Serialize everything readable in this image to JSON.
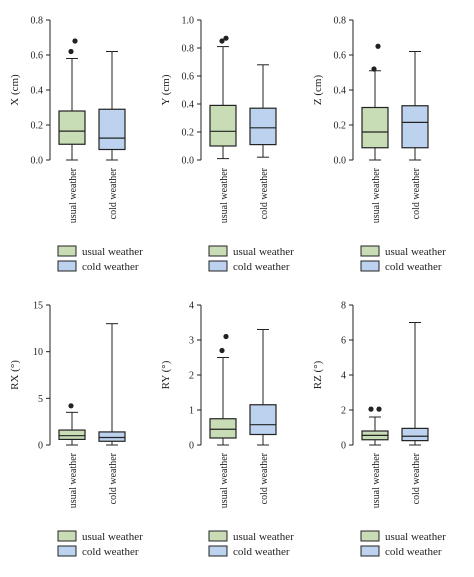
{
  "colors": {
    "usual_fill": "#c8dcb6",
    "cold_fill": "#bcd2ee",
    "stroke": "#222222"
  },
  "legend": {
    "usual_label": "usual weather",
    "cold_label": "cold weather"
  },
  "chart_data": [
    {
      "type": "box",
      "ylabel": "X (cm)",
      "ylim": [
        0,
        0.8
      ],
      "yticks": [
        "0.0",
        "0.2",
        "0.4",
        "0.6",
        "0.8"
      ],
      "categories": [
        "usual weather",
        "cold weather"
      ],
      "boxes": [
        {
          "name": "usual weather",
          "min": 0.0,
          "q1": 0.09,
          "median": 0.165,
          "q3": 0.28,
          "max": 0.58,
          "outliers": [
            0.62,
            0.68
          ]
        },
        {
          "name": "cold weather",
          "min": 0.0,
          "q1": 0.06,
          "median": 0.125,
          "q3": 0.29,
          "max": 0.62,
          "outliers": []
        }
      ]
    },
    {
      "type": "box",
      "ylabel": "Y (cm)",
      "ylim": [
        0,
        1.0
      ],
      "yticks": [
        "0.0",
        "0.2",
        "0.4",
        "0.6",
        "0.8",
        "1.0"
      ],
      "categories": [
        "usual weather",
        "cold weather"
      ],
      "boxes": [
        {
          "name": "usual weather",
          "min": 0.01,
          "q1": 0.1,
          "median": 0.205,
          "q3": 0.39,
          "max": 0.81,
          "outliers": [
            0.85,
            0.87
          ]
        },
        {
          "name": "cold weather",
          "min": 0.02,
          "q1": 0.11,
          "median": 0.23,
          "q3": 0.37,
          "max": 0.68,
          "outliers": []
        }
      ]
    },
    {
      "type": "box",
      "ylabel": "Z (cm)",
      "ylim": [
        0,
        0.8
      ],
      "yticks": [
        "0.0",
        "0.2",
        "0.4",
        "0.6",
        "0.8"
      ],
      "categories": [
        "usual weather",
        "cold weather"
      ],
      "boxes": [
        {
          "name": "usual weather",
          "min": 0.0,
          "q1": 0.07,
          "median": 0.16,
          "q3": 0.3,
          "max": 0.51,
          "outliers": [
            0.52,
            0.65
          ]
        },
        {
          "name": "cold weather",
          "min": 0.0,
          "q1": 0.07,
          "median": 0.215,
          "q3": 0.31,
          "max": 0.62,
          "outliers": []
        }
      ]
    },
    {
      "type": "box",
      "ylabel": "RX (°)",
      "ylim": [
        0,
        15
      ],
      "yticks": [
        "0",
        "5",
        "10",
        "15"
      ],
      "categories": [
        "usual weather",
        "cold weather"
      ],
      "boxes": [
        {
          "name": "usual weather",
          "min": 0.0,
          "q1": 0.6,
          "median": 1.0,
          "q3": 1.6,
          "max": 3.5,
          "outliers": [
            4.2
          ]
        },
        {
          "name": "cold weather",
          "min": 0.0,
          "q1": 0.4,
          "median": 0.8,
          "q3": 1.4,
          "max": 13.0,
          "outliers": []
        }
      ]
    },
    {
      "type": "box",
      "ylabel": "RY (°)",
      "ylim": [
        0,
        4
      ],
      "yticks": [
        "0",
        "1",
        "2",
        "3",
        "4"
      ],
      "categories": [
        "usual weather",
        "cold weather"
      ],
      "boxes": [
        {
          "name": "usual weather",
          "min": 0.0,
          "q1": 0.2,
          "median": 0.45,
          "q3": 0.75,
          "max": 2.5,
          "outliers": [
            2.7,
            3.1
          ]
        },
        {
          "name": "cold weather",
          "min": 0.0,
          "q1": 0.3,
          "median": 0.58,
          "q3": 1.15,
          "max": 3.3,
          "outliers": []
        }
      ]
    },
    {
      "type": "box",
      "ylabel": "RZ (°)",
      "ylim": [
        0,
        8
      ],
      "yticks": [
        "0",
        "2",
        "4",
        "6",
        "8"
      ],
      "categories": [
        "usual weather",
        "cold weather"
      ],
      "boxes": [
        {
          "name": "usual weather",
          "min": 0.0,
          "q1": 0.3,
          "median": 0.55,
          "q3": 0.8,
          "max": 1.6,
          "outliers": [
            2.05,
            2.05
          ]
        },
        {
          "name": "cold weather",
          "min": 0.0,
          "q1": 0.25,
          "median": 0.5,
          "q3": 0.95,
          "max": 7.0,
          "outliers": []
        }
      ]
    }
  ]
}
